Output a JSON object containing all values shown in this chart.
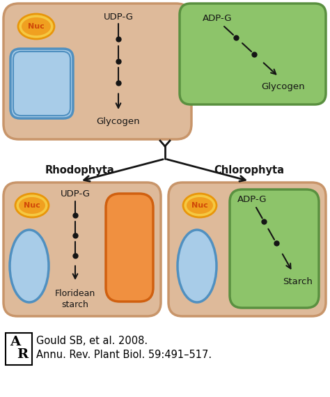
{
  "bg_color": "#ffffff",
  "cell_tan_fill": "#DEBA9A",
  "cell_tan_edge": "#C8956A",
  "chloroplast_green_fill": "#8DC46A",
  "chloroplast_green_edge": "#5A9040",
  "nuc_outer_fill": "#F5C842",
  "nuc_outer_edge": "#E8960A",
  "nuc_inner_fill": "#F0A020",
  "nuc_text_color": "#D04808",
  "vacuole_blue_fill": "#A8CCE8",
  "vacuole_blue_edge": "#5090C0",
  "plastid_orange_fill": "#F09040",
  "plastid_orange_edge": "#D06010",
  "arrow_color": "#151515",
  "text_color": "#151515",
  "rhodophyta_label": "Rhodophyta",
  "chlorophyta_label": "Chlorophyta",
  "citation_line1": "Gould SB, et al. 2008.",
  "citation_line2": "Annu. Rev. Plant Biol. 59:491–517."
}
